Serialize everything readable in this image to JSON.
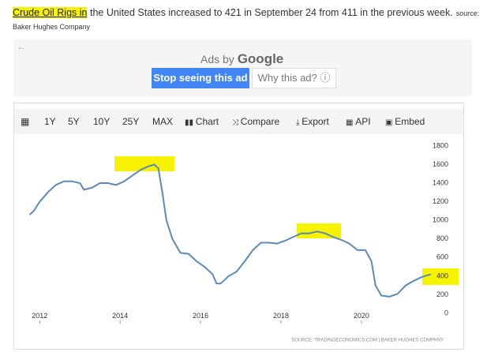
{
  "header": {
    "link": "Crude Oil Rigs in",
    "text": "the United States increased to 421 in September 24 from 411 in the previous week.",
    "source_label": "source:",
    "source": "Baker Hughes Company"
  },
  "ad": {
    "ads_by": "Ads by",
    "google": "Google",
    "stop": "Stop seeing this ad",
    "why": "Why this ad?"
  },
  "toolbar": [
    "1Y",
    "5Y",
    "10Y",
    "25Y",
    "MAX",
    "Chart",
    "Compare",
    "Export",
    "API",
    "Embed"
  ],
  "chart_data": {
    "type": "line",
    "x": [
      2011.75,
      2011.85,
      2012.0,
      2012.2,
      2012.4,
      2012.6,
      2012.8,
      2013.0,
      2013.1,
      2013.3,
      2013.5,
      2013.7,
      2013.9,
      2014.1,
      2014.3,
      2014.5,
      2014.7,
      2014.85,
      2014.95,
      2015.05,
      2015.15,
      2015.3,
      2015.5,
      2015.7,
      2015.9,
      2016.1,
      2016.3,
      2016.4,
      2016.5,
      2016.7,
      2016.9,
      2017.1,
      2017.3,
      2017.5,
      2017.7,
      2017.9,
      2018.1,
      2018.3,
      2018.5,
      2018.7,
      2018.9,
      2019.1,
      2019.3,
      2019.5,
      2019.7,
      2019.9,
      2020.1,
      2020.25,
      2020.35,
      2020.5,
      2020.7,
      2020.9,
      2021.1,
      2021.3,
      2021.5,
      2021.73
    ],
    "series": [
      {
        "name": "Crude Oil Rigs",
        "color": "#5b8ab8",
        "values": [
          1060,
          1100,
          1200,
          1300,
          1380,
          1420,
          1420,
          1400,
          1330,
          1350,
          1400,
          1400,
          1380,
          1420,
          1480,
          1540,
          1580,
          1600,
          1560,
          1300,
          1000,
          800,
          650,
          640,
          560,
          500,
          420,
          320,
          320,
          400,
          450,
          560,
          680,
          760,
          760,
          750,
          780,
          820,
          860,
          860,
          880,
          860,
          820,
          790,
          750,
          680,
          680,
          560,
          300,
          190,
          180,
          210,
          300,
          350,
          390,
          421
        ]
      }
    ],
    "xlim": [
      2011.7,
      2021.75
    ],
    "xticks": [
      2012,
      2014,
      2016,
      2018,
      2020
    ],
    "ylim": [
      -110,
      1816
    ],
    "yticks": [
      0,
      200,
      400,
      600,
      800,
      1000,
      1200,
      1400,
      1600,
      1800
    ],
    "grid": false,
    "source": "SOURCE: TRADINGECONOMICS.COM | BAKER HUGHES COMPANY"
  }
}
